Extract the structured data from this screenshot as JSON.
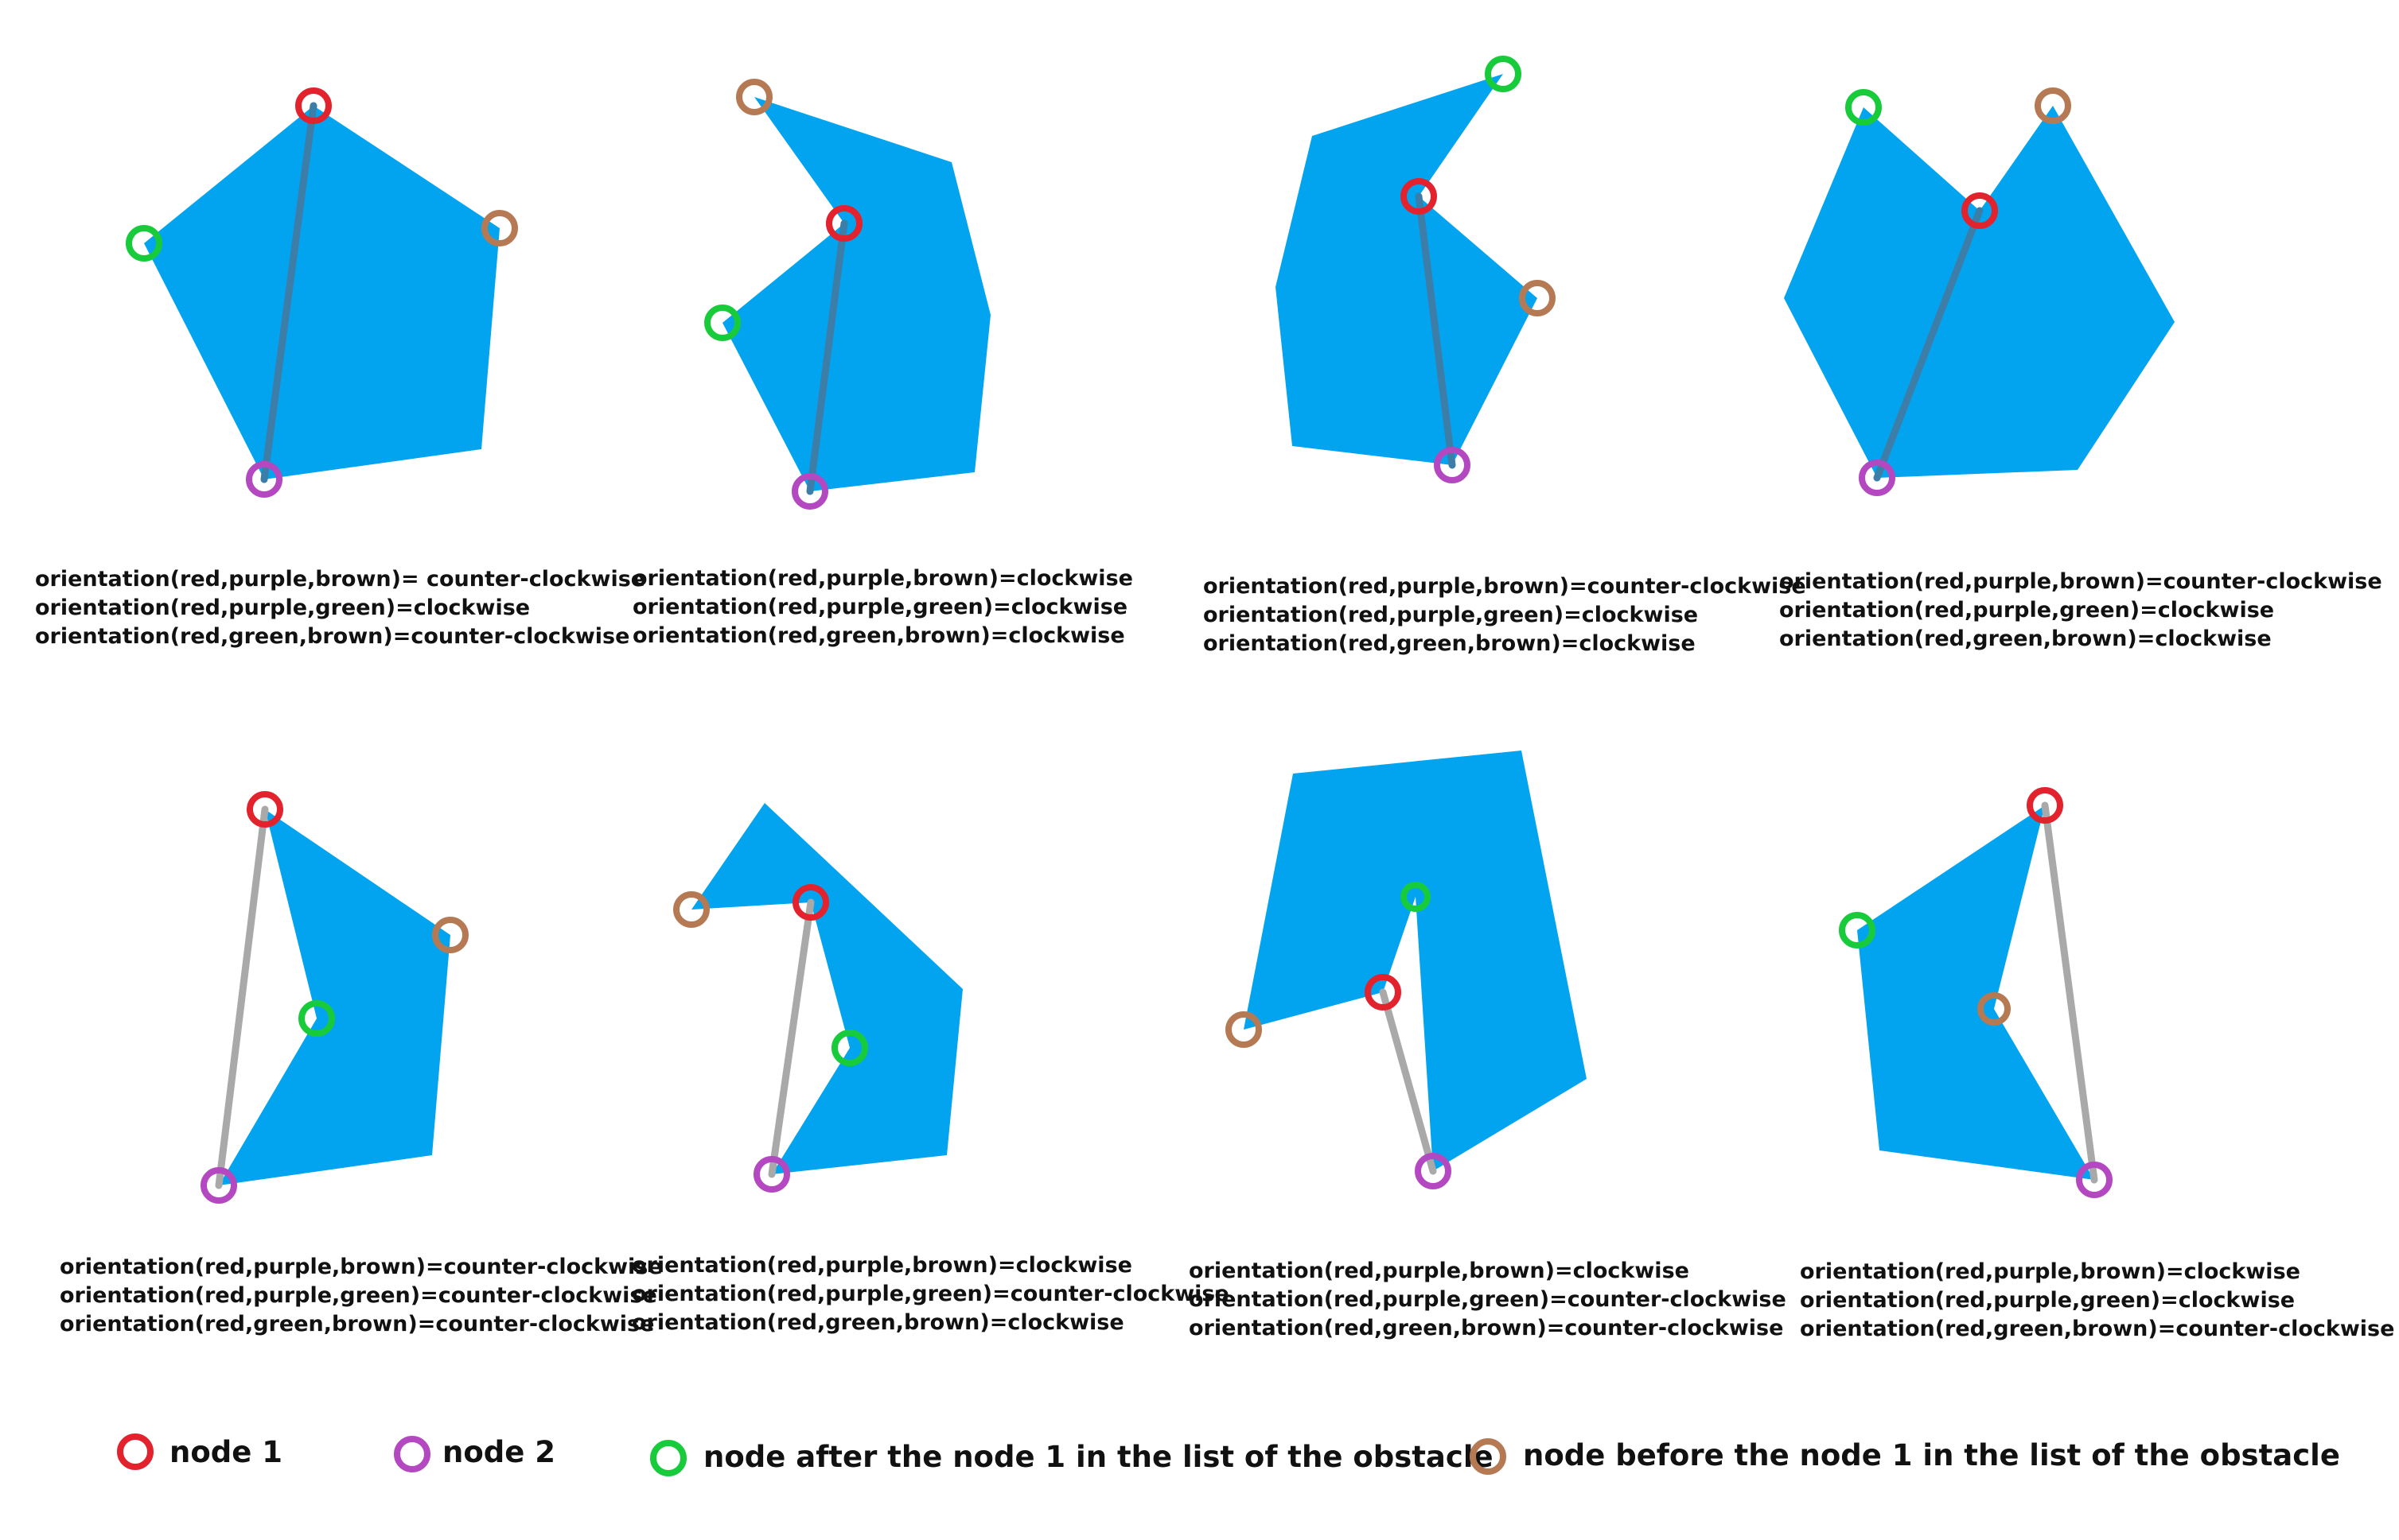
{
  "colors": {
    "obstacle_fill": "#03a4ef",
    "edge_inside": "#3d7ea8",
    "edge_outside": "#a9a9a9",
    "node1_red": "#e2232d",
    "node2_purple": "#b348c0",
    "after_green": "#18cb3b",
    "before_brown": "#b57a53"
  },
  "panels": [
    {
      "lines": [
        "orientation(red,purple,brown)= counter-clockwise",
        "orientation(red,purple,green)=clockwise",
        "orientation(red,green,brown)=counter-clockwise"
      ]
    },
    {
      "lines": [
        "orientation(red,purple,brown)=clockwise",
        "orientation(red,purple,green)=clockwise",
        "orientation(red,green,brown)=clockwise"
      ]
    },
    {
      "lines": [
        "orientation(red,purple,brown)=counter-clockwise",
        "orientation(red,purple,green)=clockwise",
        "orientation(red,green,brown)=clockwise"
      ]
    },
    {
      "lines": [
        "orientation(red,purple,brown)=counter-clockwise",
        "orientation(red,purple,green)=clockwise",
        "orientation(red,green,brown)=clockwise"
      ]
    },
    {
      "lines": [
        "orientation(red,purple,brown)=counter-clockwise",
        "orientation(red,purple,green)=counter-clockwise",
        "orientation(red,green,brown)=counter-clockwise"
      ]
    },
    {
      "lines": [
        "orientation(red,purple,brown)=clockwise",
        "orientation(red,purple,green)=counter-clockwise",
        "orientation(red,green,brown)=clockwise"
      ]
    },
    {
      "lines": [
        "orientation(red,purple,brown)=clockwise",
        "orientation(red,purple,green)=counter-clockwise",
        "orientation(red,green,brown)=counter-clockwise"
      ]
    },
    {
      "lines": [
        "orientation(red,purple,brown)=clockwise",
        "orientation(red,purple,green)=clockwise",
        "orientation(red,green,brown)=counter-clockwise"
      ]
    }
  ],
  "legend": {
    "node1": "node 1",
    "node2": "node 2",
    "after": "node after the node 1 in the list of the obstacle",
    "before": "node before the node 1  in the list of the obstacle"
  }
}
